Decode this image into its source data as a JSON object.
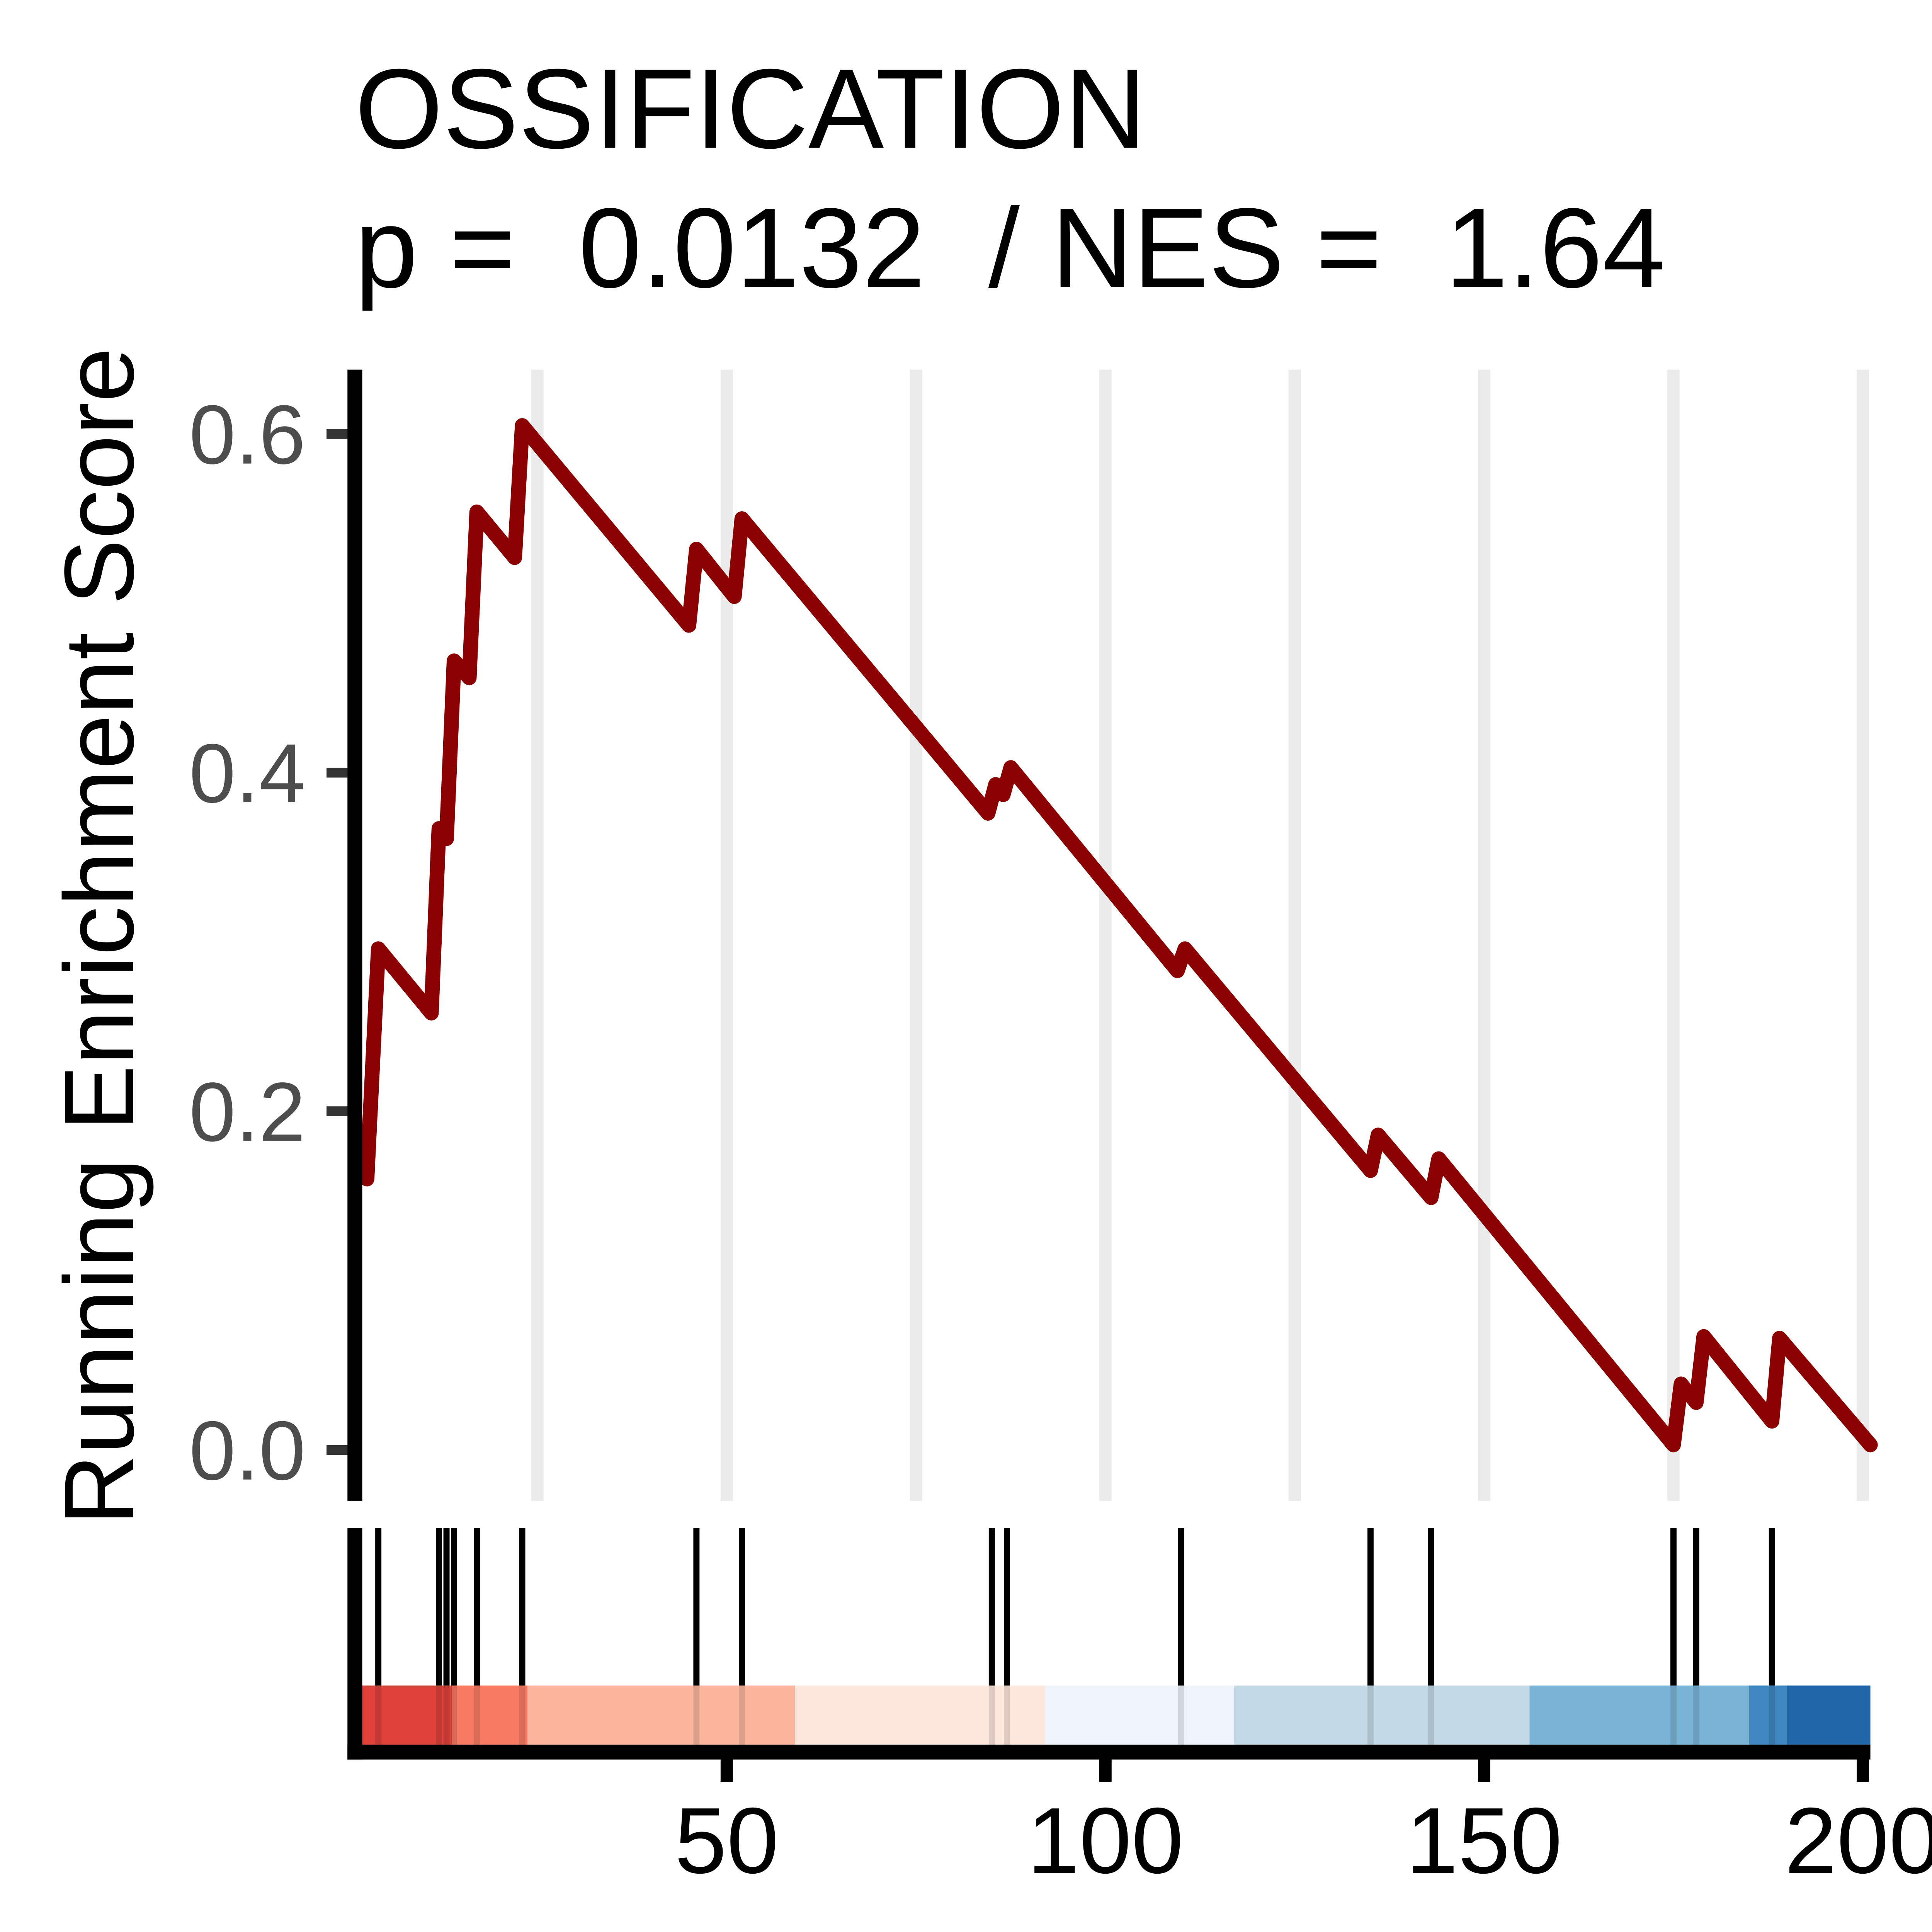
{
  "chart_data": {
    "type": "line",
    "title": "OSSIFICATION",
    "subtitle": "p =  0.0132  / NES =  1.64",
    "y_label": "Running Enrichment Score",
    "color": "#8b0000",
    "x": [
      2.5,
      4,
      11,
      12,
      13,
      14,
      16,
      17,
      22,
      23,
      45,
      46,
      51,
      52,
      84.5,
      85.5,
      86.5,
      87.5,
      109.5,
      110.5,
      135,
      136,
      143,
      144,
      175,
      176,
      178,
      179,
      188,
      189,
      201
    ],
    "values": [
      0.16,
      0.296,
      0.258,
      0.367,
      0.361,
      0.466,
      0.456,
      0.554,
      0.527,
      0.605,
      0.487,
      0.532,
      0.504,
      0.55,
      0.376,
      0.393,
      0.387,
      0.403,
      0.283,
      0.296,
      0.165,
      0.186,
      0.149,
      0.172,
      0.003,
      0.039,
      0.028,
      0.067,
      0.017,
      0.066,
      0.003
    ],
    "hits": [
      4,
      12,
      13,
      14,
      17,
      23,
      46,
      52,
      85,
      87,
      110,
      135,
      143,
      175,
      178,
      188
    ],
    "color_bar": [
      {
        "start": 1.7,
        "end": 13.7,
        "color": "#e0403a"
      },
      {
        "start": 13.7,
        "end": 23.7,
        "color": "#f97a62"
      },
      {
        "start": 23.7,
        "end": 59,
        "color": "#fbb59c"
      },
      {
        "start": 59,
        "end": 92,
        "color": "#fde6dc"
      },
      {
        "start": 92,
        "end": 117,
        "color": "#eff3fb"
      },
      {
        "start": 117,
        "end": 156,
        "color": "#c3d9e6"
      },
      {
        "start": 156,
        "end": 185,
        "color": "#79b4d7"
      },
      {
        "start": 185,
        "end": 190,
        "color": "#3e87c0"
      },
      {
        "start": 190,
        "end": 201,
        "color": "#2166a9"
      }
    ],
    "xlim": [
      0.9,
      201
    ],
    "xticks": [
      50,
      100,
      150,
      200
    ],
    "x_grid": [
      25,
      50,
      75,
      100,
      125,
      150,
      175,
      200
    ],
    "ylim": [
      -0.03,
      0.638
    ],
    "yticks": [
      {
        "value": 0,
        "label": "0.0"
      },
      0.2,
      0.4,
      0.6
    ],
    "grid": true
  }
}
